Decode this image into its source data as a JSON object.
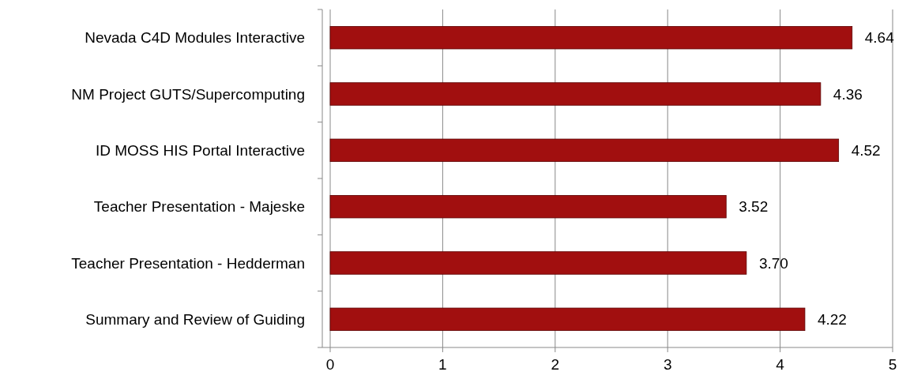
{
  "chart_data": {
    "type": "bar",
    "orientation": "horizontal",
    "categories": [
      "Nevada C4D Modules Interactive",
      "NM Project GUTS/Supercomputing",
      "ID MOSS HIS Portal Interactive",
      "Teacher Presentation - Majeske",
      "Teacher Presentation - Hedderman",
      "Summary and Review of Guiding"
    ],
    "values": [
      4.64,
      4.36,
      4.52,
      3.52,
      3.7,
      4.22
    ],
    "value_labels": [
      "4.64",
      "4.36",
      "4.52",
      "3.52",
      "3.70",
      "4.22"
    ],
    "color": "#a10f0f",
    "xlim": [
      0,
      5
    ],
    "xticks": [
      0,
      1,
      2,
      3,
      4,
      5
    ],
    "grid": "x"
  }
}
